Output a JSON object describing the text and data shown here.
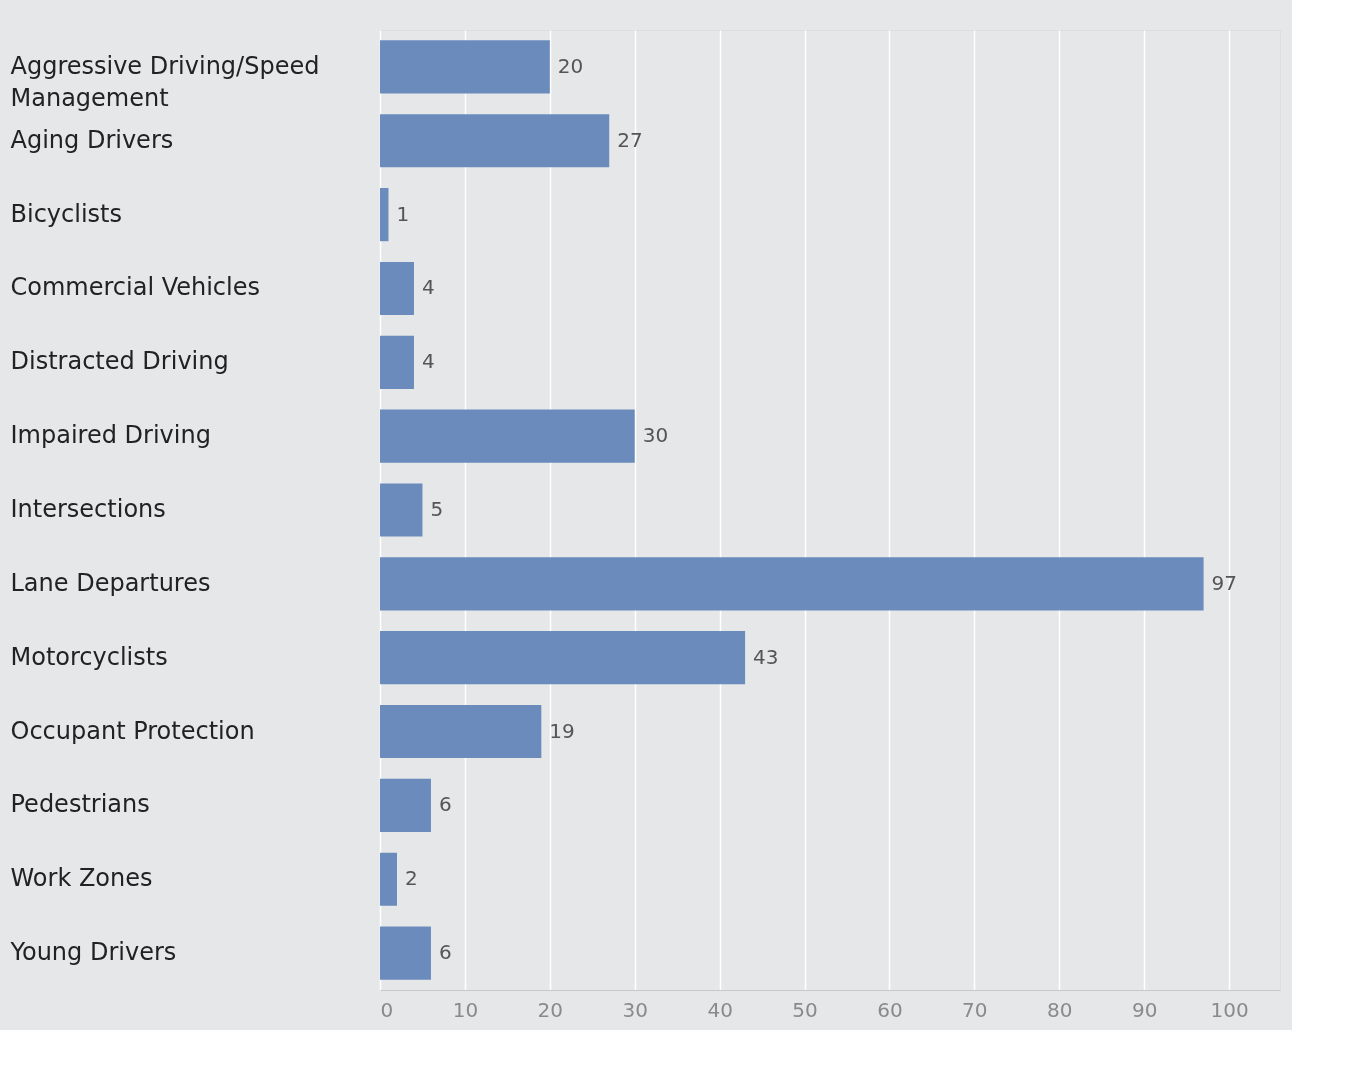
{
  "chart_data": {
    "type": "bar",
    "orientation": "horizontal",
    "categories": [
      "Aggressive Driving/Speed Management",
      "Aging Drivers",
      "Bicyclists",
      "Commercial Vehicles",
      "Distracted Driving",
      "Impaired Driving",
      "Intersections",
      "Lane Departures",
      "Motorcyclists",
      "Occupant Protection",
      "Pedestrians",
      "Work Zones",
      "Young Drivers"
    ],
    "values": [
      20,
      27,
      1,
      4,
      4,
      30,
      5,
      97,
      43,
      19,
      6,
      2,
      6
    ],
    "color": "#6a8bbb",
    "xlim": [
      0,
      106
    ],
    "xticks": [
      0,
      10,
      20,
      30,
      40,
      50,
      60,
      70,
      80,
      90,
      100
    ],
    "grid": "x",
    "data_labels": true
  }
}
